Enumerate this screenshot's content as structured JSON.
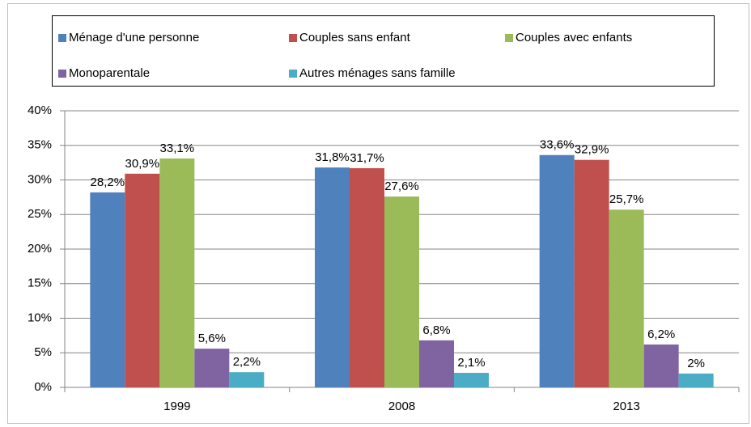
{
  "chart_data": {
    "type": "bar",
    "categories": [
      "1999",
      "2008",
      "2013"
    ],
    "series": [
      {
        "name": "Ménage d'une personne",
        "color": "#4f81bd",
        "values": [
          28.2,
          31.8,
          33.6
        ],
        "value_labels": [
          "28,2%",
          "31,8%",
          "33,6%"
        ]
      },
      {
        "name": "Couples sans enfant",
        "color": "#c0504d",
        "values": [
          30.9,
          31.7,
          32.9
        ],
        "value_labels": [
          "30,9%",
          "31,7%",
          "32,9%"
        ]
      },
      {
        "name": "Couples avec enfants",
        "color": "#9bbb59",
        "values": [
          33.1,
          27.6,
          25.7
        ],
        "value_labels": [
          "33,1%",
          "27,6%",
          "25,7%"
        ]
      },
      {
        "name": "Monoparentale",
        "color": "#8064a2",
        "values": [
          5.6,
          6.8,
          6.2
        ],
        "value_labels": [
          "5,6%",
          "6,8%",
          "6,2%"
        ]
      },
      {
        "name": "Autres ménages sans famille",
        "color": "#4bacc6",
        "values": [
          2.2,
          2.1,
          2.0
        ],
        "value_labels": [
          "2,2%",
          "2,1%",
          "2%"
        ]
      }
    ],
    "ylim": [
      0,
      40
    ],
    "yticks": [
      {
        "value": 0,
        "label": "0%"
      },
      {
        "value": 5,
        "label": "5%"
      },
      {
        "value": 10,
        "label": "10%"
      },
      {
        "value": 15,
        "label": "15%"
      },
      {
        "value": 20,
        "label": "20%"
      },
      {
        "value": 25,
        "label": "25%"
      },
      {
        "value": 30,
        "label": "30%"
      },
      {
        "value": 35,
        "label": "35%"
      },
      {
        "value": 40,
        "label": "40%"
      }
    ],
    "grid": true,
    "legend": "top"
  }
}
